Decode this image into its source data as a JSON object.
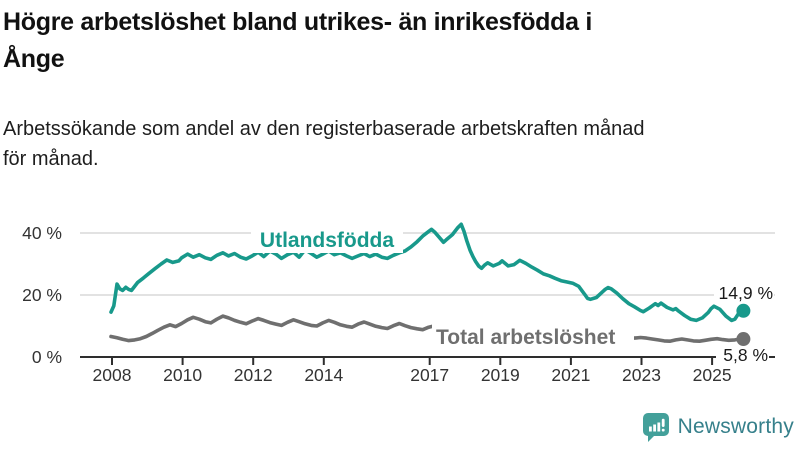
{
  "header": {
    "title_line1": "Högre arbetslöshet bland utrikes- än inrikesfödda i",
    "title_line2": "Ånge",
    "subtitle_line1": "Arbetssökande som andel av den registerbaserade arbetskraften månad",
    "subtitle_line2": "för månad."
  },
  "footer": {
    "brand": "Newsworthy"
  },
  "colors": {
    "teal_line": "#18998b",
    "gray_line": "#6f6f6f",
    "grid": "#d8d8d8",
    "axis": "#2e2e2e",
    "tick_text": "#333333",
    "annotation_text": "#1a1a1a",
    "brand_text": "#36808b",
    "brand_icon": "#43a09a"
  },
  "chart_data": {
    "type": "line",
    "unit": "%",
    "x_ticks": [
      2008,
      2010,
      2012,
      2014,
      2017,
      2019,
      2021,
      2023,
      2025
    ],
    "y_ticks": [
      0,
      20,
      40
    ],
    "y_tick_labels": [
      "0 %",
      "20 %",
      "40 %"
    ],
    "ylim": [
      0,
      45
    ],
    "xlim": [
      2007.9,
      2026.3
    ],
    "grid": "horizontal-only",
    "legend_position": "inline-labels",
    "series": [
      {
        "name": "Utlandsfödda",
        "color": "#18998b",
        "end_label": "14,9 %",
        "end_value": 14.9,
        "points": [
          [
            2008.0,
            14.5
          ],
          [
            2008.08,
            16.5
          ],
          [
            2008.17,
            23.5
          ],
          [
            2008.25,
            22.0
          ],
          [
            2008.33,
            21.5
          ],
          [
            2008.42,
            22.5
          ],
          [
            2008.5,
            21.8
          ],
          [
            2008.58,
            21.5
          ],
          [
            2008.75,
            24.0
          ],
          [
            2008.92,
            25.5
          ],
          [
            2009.08,
            27.0
          ],
          [
            2009.25,
            28.5
          ],
          [
            2009.42,
            30.0
          ],
          [
            2009.58,
            31.3
          ],
          [
            2009.75,
            30.5
          ],
          [
            2009.92,
            31.0
          ],
          [
            2010.0,
            32.0
          ],
          [
            2010.17,
            33.2
          ],
          [
            2010.33,
            32.2
          ],
          [
            2010.5,
            33.0
          ],
          [
            2010.67,
            32.0
          ],
          [
            2010.83,
            31.5
          ],
          [
            2011.0,
            32.8
          ],
          [
            2011.17,
            33.6
          ],
          [
            2011.33,
            32.6
          ],
          [
            2011.5,
            33.4
          ],
          [
            2011.67,
            32.2
          ],
          [
            2011.83,
            31.6
          ],
          [
            2012.0,
            32.6
          ],
          [
            2012.17,
            33.8
          ],
          [
            2012.33,
            32.4
          ],
          [
            2012.5,
            34.2
          ],
          [
            2012.67,
            33.2
          ],
          [
            2012.83,
            31.8
          ],
          [
            2013.0,
            33.0
          ],
          [
            2013.17,
            33.8
          ],
          [
            2013.33,
            32.2
          ],
          [
            2013.5,
            34.6
          ],
          [
            2013.67,
            33.4
          ],
          [
            2013.83,
            32.2
          ],
          [
            2014.0,
            33.2
          ],
          [
            2014.17,
            34.2
          ],
          [
            2014.33,
            33.0
          ],
          [
            2014.5,
            33.6
          ],
          [
            2014.67,
            32.6
          ],
          [
            2014.83,
            31.8
          ],
          [
            2015.0,
            32.6
          ],
          [
            2015.17,
            33.4
          ],
          [
            2015.33,
            32.4
          ],
          [
            2015.5,
            33.2
          ],
          [
            2015.67,
            32.2
          ],
          [
            2015.83,
            31.8
          ],
          [
            2016.0,
            32.8
          ],
          [
            2016.17,
            33.6
          ],
          [
            2016.33,
            34.2
          ],
          [
            2016.5,
            35.5
          ],
          [
            2016.67,
            37.2
          ],
          [
            2016.83,
            39.0
          ],
          [
            2017.0,
            40.5
          ],
          [
            2017.08,
            41.2
          ],
          [
            2017.17,
            40.3
          ],
          [
            2017.33,
            38.2
          ],
          [
            2017.42,
            37.0
          ],
          [
            2017.5,
            37.8
          ],
          [
            2017.67,
            39.5
          ],
          [
            2017.83,
            41.8
          ],
          [
            2017.92,
            42.8
          ],
          [
            2018.0,
            40.5
          ],
          [
            2018.08,
            37.5
          ],
          [
            2018.17,
            34.5
          ],
          [
            2018.25,
            32.5
          ],
          [
            2018.33,
            30.8
          ],
          [
            2018.42,
            29.3
          ],
          [
            2018.5,
            28.6
          ],
          [
            2018.58,
            29.6
          ],
          [
            2018.67,
            30.4
          ],
          [
            2018.83,
            29.4
          ],
          [
            2019.0,
            30.2
          ],
          [
            2019.08,
            31.0
          ],
          [
            2019.25,
            29.4
          ],
          [
            2019.42,
            29.8
          ],
          [
            2019.58,
            31.2
          ],
          [
            2019.75,
            30.2
          ],
          [
            2019.92,
            29.0
          ],
          [
            2020.08,
            28.0
          ],
          [
            2020.25,
            26.8
          ],
          [
            2020.42,
            26.2
          ],
          [
            2020.58,
            25.4
          ],
          [
            2020.75,
            24.6
          ],
          [
            2020.92,
            24.2
          ],
          [
            2021.08,
            23.8
          ],
          [
            2021.25,
            22.8
          ],
          [
            2021.42,
            20.2
          ],
          [
            2021.5,
            18.9
          ],
          [
            2021.58,
            18.6
          ],
          [
            2021.75,
            19.2
          ],
          [
            2021.92,
            21.0
          ],
          [
            2022.0,
            21.8
          ],
          [
            2022.08,
            22.4
          ],
          [
            2022.17,
            22.0
          ],
          [
            2022.33,
            20.6
          ],
          [
            2022.5,
            18.8
          ],
          [
            2022.67,
            17.2
          ],
          [
            2022.83,
            16.2
          ],
          [
            2023.0,
            15.0
          ],
          [
            2023.08,
            14.6
          ],
          [
            2023.25,
            15.8
          ],
          [
            2023.42,
            17.2
          ],
          [
            2023.5,
            16.6
          ],
          [
            2023.58,
            17.4
          ],
          [
            2023.75,
            16.0
          ],
          [
            2023.92,
            15.2
          ],
          [
            2024.0,
            15.6
          ],
          [
            2024.08,
            14.8
          ],
          [
            2024.25,
            13.4
          ],
          [
            2024.42,
            12.2
          ],
          [
            2024.58,
            11.8
          ],
          [
            2024.75,
            12.6
          ],
          [
            2024.92,
            14.4
          ],
          [
            2025.0,
            15.6
          ],
          [
            2025.08,
            16.4
          ],
          [
            2025.25,
            15.4
          ],
          [
            2025.42,
            13.2
          ],
          [
            2025.58,
            11.8
          ],
          [
            2025.67,
            12.2
          ],
          [
            2025.83,
            14.9
          ]
        ]
      },
      {
        "name": "Total arbetslöshet",
        "color": "#6f6f6f",
        "end_label": "5,8 %",
        "end_value": 5.8,
        "points": [
          [
            2008.0,
            6.6
          ],
          [
            2008.17,
            6.2
          ],
          [
            2008.33,
            5.7
          ],
          [
            2008.5,
            5.3
          ],
          [
            2008.67,
            5.5
          ],
          [
            2008.83,
            5.9
          ],
          [
            2009.0,
            6.6
          ],
          [
            2009.17,
            7.6
          ],
          [
            2009.33,
            8.6
          ],
          [
            2009.5,
            9.6
          ],
          [
            2009.67,
            10.4
          ],
          [
            2009.83,
            9.8
          ],
          [
            2010.0,
            10.8
          ],
          [
            2010.17,
            12.0
          ],
          [
            2010.33,
            12.8
          ],
          [
            2010.5,
            12.2
          ],
          [
            2010.67,
            11.4
          ],
          [
            2010.83,
            11.0
          ],
          [
            2011.0,
            12.2
          ],
          [
            2011.17,
            13.2
          ],
          [
            2011.33,
            12.6
          ],
          [
            2011.5,
            11.8
          ],
          [
            2011.67,
            11.2
          ],
          [
            2011.83,
            10.7
          ],
          [
            2012.0,
            11.6
          ],
          [
            2012.17,
            12.4
          ],
          [
            2012.33,
            11.8
          ],
          [
            2012.5,
            11.1
          ],
          [
            2012.67,
            10.6
          ],
          [
            2012.83,
            10.2
          ],
          [
            2013.0,
            11.2
          ],
          [
            2013.17,
            12.0
          ],
          [
            2013.33,
            11.4
          ],
          [
            2013.5,
            10.7
          ],
          [
            2013.67,
            10.2
          ],
          [
            2013.83,
            10.0
          ],
          [
            2014.0,
            11.0
          ],
          [
            2014.17,
            11.8
          ],
          [
            2014.33,
            11.2
          ],
          [
            2014.5,
            10.4
          ],
          [
            2014.67,
            9.9
          ],
          [
            2014.83,
            9.6
          ],
          [
            2015.0,
            10.6
          ],
          [
            2015.17,
            11.3
          ],
          [
            2015.33,
            10.6
          ],
          [
            2015.5,
            9.9
          ],
          [
            2015.67,
            9.5
          ],
          [
            2015.83,
            9.2
          ],
          [
            2016.0,
            10.1
          ],
          [
            2016.17,
            10.8
          ],
          [
            2016.33,
            10.1
          ],
          [
            2016.5,
            9.5
          ],
          [
            2016.67,
            9.1
          ],
          [
            2016.83,
            8.8
          ],
          [
            2017.0,
            9.6
          ],
          [
            2017.17,
            10.1
          ],
          [
            2017.33,
            9.5
          ],
          [
            2017.5,
            8.9
          ],
          [
            2017.67,
            8.5
          ],
          [
            2017.83,
            8.3
          ],
          [
            2018.0,
            9.0
          ],
          [
            2018.17,
            9.5
          ],
          [
            2018.33,
            8.9
          ],
          [
            2018.5,
            8.4
          ],
          [
            2018.67,
            8.1
          ],
          [
            2018.83,
            7.9
          ],
          [
            2019.0,
            8.6
          ],
          [
            2019.17,
            9.0
          ],
          [
            2019.33,
            8.5
          ],
          [
            2019.5,
            8.0
          ],
          [
            2019.67,
            7.7
          ],
          [
            2019.83,
            7.6
          ],
          [
            2020.0,
            8.2
          ],
          [
            2020.17,
            8.7
          ],
          [
            2020.33,
            8.3
          ],
          [
            2020.5,
            7.9
          ],
          [
            2020.67,
            7.6
          ],
          [
            2020.83,
            7.4
          ],
          [
            2021.0,
            7.9
          ],
          [
            2021.17,
            8.2
          ],
          [
            2021.33,
            7.7
          ],
          [
            2021.5,
            7.2
          ],
          [
            2021.67,
            6.9
          ],
          [
            2021.83,
            6.7
          ],
          [
            2022.0,
            7.2
          ],
          [
            2022.17,
            7.5
          ],
          [
            2022.33,
            7.0
          ],
          [
            2022.5,
            6.6
          ],
          [
            2022.67,
            6.3
          ],
          [
            2022.83,
            6.1
          ],
          [
            2023.0,
            6.3
          ],
          [
            2023.17,
            6.1
          ],
          [
            2023.33,
            5.8
          ],
          [
            2023.5,
            5.5
          ],
          [
            2023.67,
            5.2
          ],
          [
            2023.83,
            5.1
          ],
          [
            2024.0,
            5.5
          ],
          [
            2024.17,
            5.8
          ],
          [
            2024.33,
            5.5
          ],
          [
            2024.5,
            5.2
          ],
          [
            2024.67,
            5.1
          ],
          [
            2024.83,
            5.4
          ],
          [
            2025.0,
            5.7
          ],
          [
            2025.17,
            5.9
          ],
          [
            2025.33,
            5.6
          ],
          [
            2025.5,
            5.4
          ],
          [
            2025.67,
            5.5
          ],
          [
            2025.83,
            5.8
          ]
        ]
      }
    ]
  }
}
